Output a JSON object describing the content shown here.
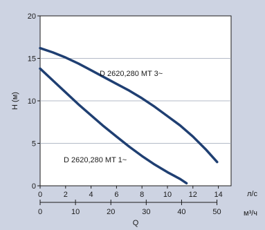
{
  "chart_data": {
    "type": "line",
    "title": "",
    "ylabel": "H (м)",
    "xlabel": "Q",
    "xunit_top": "л/с",
    "xunit_bottom": "м³/ч",
    "xlim": [
      0,
      15
    ],
    "ylim": [
      0,
      20
    ],
    "xticks_top": [
      "0",
      "2",
      "4",
      "6",
      "8",
      "10",
      "12",
      "14"
    ],
    "xticks_top_values": [
      0,
      2,
      4,
      6,
      8,
      10,
      12,
      14
    ],
    "xticks_bottom": [
      "0",
      "10",
      "20",
      "30",
      "40",
      "50"
    ],
    "xticks_bottom_values": [
      0,
      10,
      20,
      30,
      40,
      50
    ],
    "yticks": [
      "0",
      "5",
      "10",
      "15",
      "20"
    ],
    "yticks_values": [
      0,
      5,
      10,
      15,
      20
    ],
    "grid": "horizontal",
    "colors": {
      "series": "#1f3f72",
      "background": "#cdd3e2",
      "plot": "#ffffff"
    },
    "series": [
      {
        "name": "D 2620,280 MT 3~",
        "x": [
          0,
          1,
          2,
          3,
          4,
          5,
          6,
          7,
          8,
          9,
          10,
          11,
          12,
          13,
          13.9
        ],
        "y": [
          16.2,
          15.7,
          15.1,
          14.4,
          13.6,
          12.8,
          12.0,
          11.2,
          10.3,
          9.3,
          8.2,
          7.1,
          5.8,
          4.3,
          2.8
        ]
      },
      {
        "name": "D 2620,280 MT 1~",
        "x": [
          0,
          1,
          2,
          3,
          4,
          5,
          6,
          7,
          8,
          9,
          10,
          11,
          11.5
        ],
        "y": [
          13.8,
          12.4,
          11.0,
          9.6,
          8.3,
          7.0,
          5.8,
          4.6,
          3.5,
          2.5,
          1.6,
          0.8,
          0.3
        ]
      }
    ]
  }
}
